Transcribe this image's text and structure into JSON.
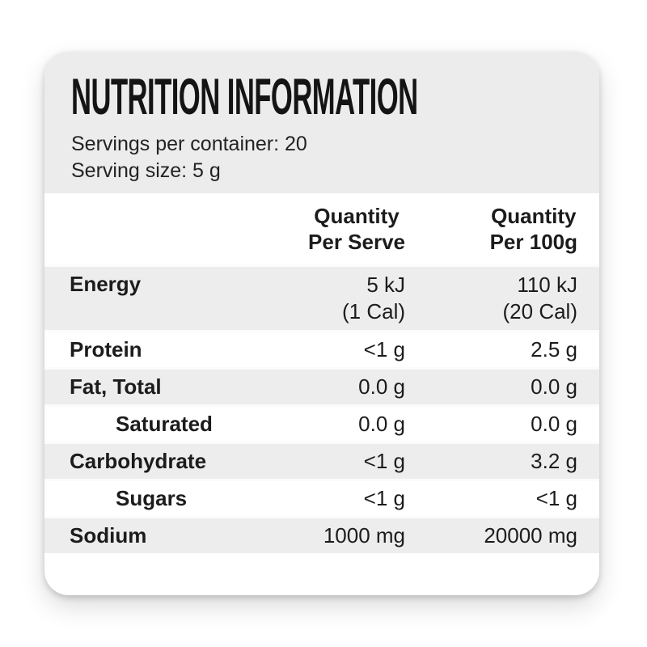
{
  "label": {
    "title": "NUTRITION INFORMATION",
    "servings_per_container": "Servings per container: 20",
    "serving_size": "Serving size: 5 g"
  },
  "table": {
    "columns": {
      "per_serve": {
        "line1": "Quantity",
        "line2": "Per Serve"
      },
      "per_100g": {
        "line1": "Quantity",
        "line2": "Per 100g"
      }
    },
    "rows": [
      {
        "label": "Energy",
        "per_serve": "5 kJ",
        "per_serve_2": "(1 Cal)",
        "per_100g": "110 kJ",
        "per_100g_2": "(20 Cal)",
        "indent": false,
        "shaded": true
      },
      {
        "label": "Protein",
        "per_serve": "<1 g",
        "per_100g": "2.5 g",
        "indent": false,
        "shaded": false
      },
      {
        "label": "Fat, Total",
        "per_serve": "0.0 g",
        "per_100g": "0.0 g",
        "indent": false,
        "shaded": true
      },
      {
        "label": "Saturated",
        "per_serve": "0.0 g",
        "per_100g": "0.0 g",
        "indent": true,
        "shaded": false
      },
      {
        "label": "Carbohydrate",
        "per_serve": "<1 g",
        "per_100g": "3.2 g",
        "indent": false,
        "shaded": true
      },
      {
        "label": "Sugars",
        "per_serve": "<1 g",
        "per_100g": "<1 g",
        "indent": true,
        "shaded": false
      },
      {
        "label": "Sodium",
        "per_serve": "1000 mg",
        "per_100g": "20000 mg",
        "indent": false,
        "shaded": true
      }
    ]
  },
  "colors": {
    "card_background": "#ffffff",
    "header_band": "#ececec",
    "shaded_row": "#ededed",
    "text": "#1c1c1c"
  }
}
